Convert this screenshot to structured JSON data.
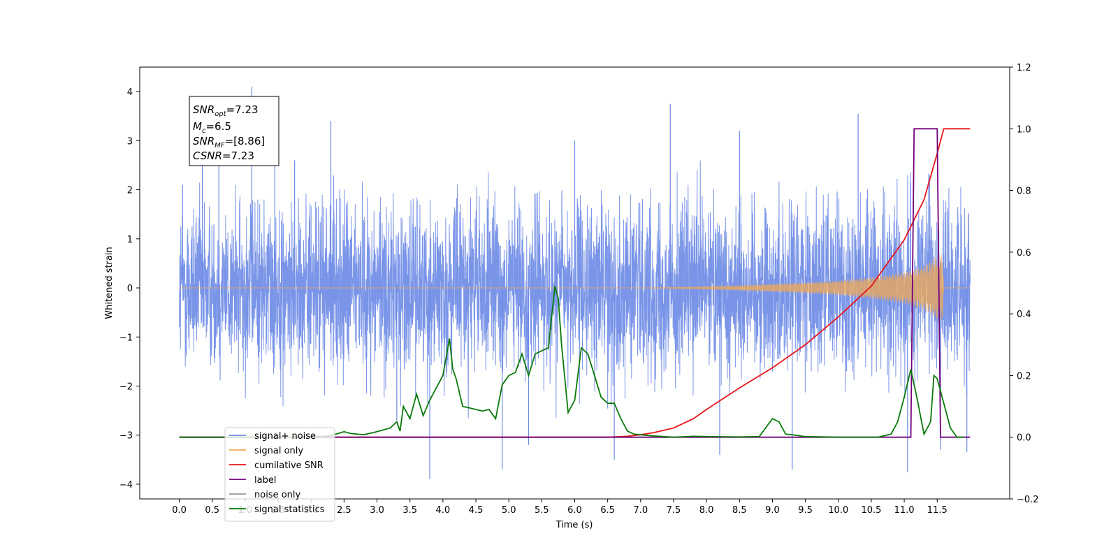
{
  "chart_data": {
    "type": "line",
    "title": "",
    "xlabel": "Time (s)",
    "ylabel": "Whitened strain",
    "xlim": [
      -0.6,
      12.6
    ],
    "ylim": [
      -4.3,
      4.5
    ],
    "ylim_right": [
      -0.2,
      1.2
    ],
    "x_ticks": [
      "0.0",
      "0.5",
      "1.0",
      "1.5",
      "2.0",
      "2.5",
      "3.0",
      "3.5",
      "4.0",
      "4.5",
      "5.0",
      "5.5",
      "6.0",
      "6.5",
      "7.0",
      "7.5",
      "8.0",
      "8.5",
      "9.0",
      "9.5",
      "10.0",
      "10.5",
      "11.0",
      "11.5"
    ],
    "y_ticks_left": [
      "4",
      "3",
      "2",
      "1",
      "0",
      "−1",
      "−2",
      "−3",
      "−4"
    ],
    "y_ticks_right": [
      "1.2",
      "1.0",
      "0.8",
      "0.6",
      "0.4",
      "0.2",
      "0.0",
      "−0.2"
    ],
    "grid": false,
    "legend_position": "lower-left",
    "annotation": {
      "line1_base": "SNR",
      "line1_sub": "opt",
      "line1_rest": "=7.23",
      "line2_base": "M",
      "line2_sub": "c",
      "line2_rest": "=6.5",
      "line3_base": "SNR",
      "line3_sub": "MF",
      "line3_rest": "=[8.86]",
      "line4_base": "CSNR",
      "line4_rest": "=7.23"
    },
    "series": [
      {
        "name": "signal+ noise",
        "axis": "left",
        "color": "#6b8ae6",
        "style": "noise",
        "t_range": [
          0.0,
          12.0
        ],
        "envelope": [
          [
            0.0,
            1.5
          ],
          [
            12.0,
            1.5
          ]
        ],
        "peaks": [
          [
            0.05,
            2.1
          ],
          [
            0.35,
            2.6
          ],
          [
            0.6,
            3.0
          ],
          [
            1.1,
            4.1
          ],
          [
            1.45,
            3.3
          ],
          [
            1.75,
            2.6
          ],
          [
            2.3,
            3.4
          ],
          [
            3.3,
            -2.7
          ],
          [
            3.8,
            -3.9
          ],
          [
            4.9,
            -3.7
          ],
          [
            5.3,
            -3.2
          ],
          [
            6.0,
            3.0
          ],
          [
            6.6,
            -3.5
          ],
          [
            7.45,
            3.75
          ],
          [
            8.2,
            -3.4
          ],
          [
            8.5,
            3.2
          ],
          [
            9.3,
            -3.7
          ],
          [
            10.3,
            3.55
          ],
          [
            11.05,
            -3.75
          ],
          [
            11.55,
            -3.3
          ],
          [
            11.95,
            -3.35
          ]
        ]
      },
      {
        "name": "signal only",
        "axis": "left",
        "color": "#f2a955",
        "style": "chirp",
        "t_range": [
          0.0,
          12.0
        ],
        "envelope": [
          [
            0.0,
            0.0
          ],
          [
            7.0,
            0.0
          ],
          [
            7.5,
            0.01
          ],
          [
            8.0,
            0.03
          ],
          [
            8.5,
            0.05
          ],
          [
            9.0,
            0.08
          ],
          [
            9.5,
            0.11
          ],
          [
            10.0,
            0.15
          ],
          [
            10.5,
            0.22
          ],
          [
            11.0,
            0.32
          ],
          [
            11.3,
            0.45
          ],
          [
            11.5,
            0.65
          ],
          [
            11.58,
            0.72
          ],
          [
            11.6,
            0.0
          ],
          [
            12.0,
            0.0
          ]
        ]
      },
      {
        "name": "cumilative SNR",
        "axis": "right",
        "color": "#e8151b",
        "x": [
          0.0,
          6.5,
          6.8,
          7.0,
          7.2,
          7.5,
          7.8,
          8.0,
          8.5,
          9.0,
          9.5,
          10.0,
          10.5,
          11.0,
          11.3,
          11.5,
          11.6,
          12.0
        ],
        "values": [
          0.0,
          0.0,
          0.003,
          0.008,
          0.015,
          0.03,
          0.06,
          0.09,
          0.16,
          0.225,
          0.3,
          0.39,
          0.49,
          0.64,
          0.77,
          0.92,
          1.0,
          1.0
        ]
      },
      {
        "name": "label",
        "axis": "right",
        "color": "#73007a",
        "x": [
          0.0,
          11.1,
          11.15,
          11.5,
          11.55,
          12.0
        ],
        "values": [
          0.0,
          0.0,
          1.0,
          1.0,
          0.0,
          0.0
        ]
      },
      {
        "name": "noise only",
        "axis": "right",
        "color": "#999999",
        "x": [],
        "values": []
      },
      {
        "name": "signal statistics",
        "axis": "right",
        "color": "#0a7a0a",
        "x": [
          0.0,
          2.0,
          2.3,
          2.5,
          2.6,
          2.8,
          3.0,
          3.2,
          3.3,
          3.35,
          3.4,
          3.5,
          3.6,
          3.7,
          3.8,
          3.9,
          4.0,
          4.1,
          4.15,
          4.2,
          4.3,
          4.4,
          4.5,
          4.6,
          4.7,
          4.8,
          4.9,
          5.0,
          5.1,
          5.2,
          5.3,
          5.4,
          5.5,
          5.6,
          5.7,
          5.75,
          5.8,
          5.9,
          6.0,
          6.1,
          6.2,
          6.3,
          6.4,
          6.5,
          6.6,
          6.7,
          6.8,
          6.9,
          7.0,
          7.2,
          7.5,
          7.8,
          8.0,
          8.5,
          8.8,
          9.0,
          9.1,
          9.2,
          9.3,
          9.5,
          10.0,
          10.6,
          10.8,
          10.9,
          11.0,
          11.1,
          11.2,
          11.3,
          11.4,
          11.45,
          11.5,
          11.6,
          11.7,
          11.8,
          11.9
        ],
        "values": [
          0.0,
          0.0,
          0.005,
          0.018,
          0.012,
          0.008,
          0.018,
          0.03,
          0.05,
          0.02,
          0.1,
          0.06,
          0.14,
          0.07,
          0.12,
          0.16,
          0.2,
          0.32,
          0.22,
          0.19,
          0.1,
          0.095,
          0.09,
          0.085,
          0.09,
          0.06,
          0.17,
          0.2,
          0.21,
          0.27,
          0.2,
          0.27,
          0.28,
          0.29,
          0.49,
          0.45,
          0.3,
          0.08,
          0.12,
          0.29,
          0.27,
          0.2,
          0.13,
          0.11,
          0.11,
          0.06,
          0.02,
          0.01,
          0.008,
          0.004,
          0.0,
          0.003,
          0.002,
          0.001,
          0.002,
          0.06,
          0.05,
          0.01,
          0.008,
          0.002,
          0.0,
          0.0,
          0.01,
          0.05,
          0.13,
          0.22,
          0.12,
          0.01,
          0.05,
          0.2,
          0.19,
          0.11,
          0.03,
          0.0,
          0.0
        ]
      }
    ]
  }
}
